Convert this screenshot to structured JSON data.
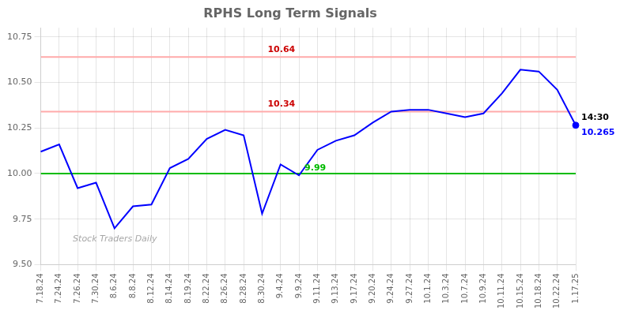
{
  "chart_data": {
    "type": "line",
    "title": "RPHS Long Term Signals",
    "categories": [
      "7.18.24",
      "7.24.24",
      "7.26.24",
      "7.30.24",
      "8.6.24",
      "8.8.24",
      "8.12.24",
      "8.14.24",
      "8.19.24",
      "8.22.24",
      "8.26.24",
      "8.28.24",
      "8.30.24",
      "9.4.24",
      "9.9.24",
      "9.11.24",
      "9.13.24",
      "9.17.24",
      "9.20.24",
      "9.24.24",
      "9.27.24",
      "10.1.24",
      "10.3.24",
      "10.7.24",
      "10.9.24",
      "10.11.24",
      "10.15.24",
      "10.18.24",
      "10.22.24",
      "1.17.25"
    ],
    "values": [
      10.12,
      10.16,
      9.92,
      9.95,
      9.7,
      9.82,
      9.83,
      10.03,
      10.08,
      10.19,
      10.24,
      10.21,
      9.78,
      10.05,
      9.99,
      10.13,
      10.18,
      10.21,
      10.28,
      10.34,
      10.35,
      10.35,
      10.33,
      10.31,
      10.33,
      10.44,
      10.57,
      10.56,
      10.46,
      10.265
    ],
    "color": "blue",
    "ylim": [
      9.5,
      10.8
    ],
    "yticks": [
      {
        "value": 9.5,
        "label": "9.50"
      },
      {
        "value": 9.75,
        "label": "9.75"
      },
      {
        "value": 10.0,
        "label": "10.00"
      },
      {
        "value": 10.25,
        "label": "10.25"
      },
      {
        "value": 10.5,
        "label": "10.50"
      },
      {
        "value": 10.75,
        "label": "10.75"
      }
    ],
    "grid": true,
    "hlines": [
      {
        "value": 10.0,
        "color": "#00bb00"
      },
      {
        "value": 10.64,
        "color": "#ffaaaa"
      },
      {
        "value": 10.34,
        "color": "#ffaaaa"
      }
    ],
    "markers": [
      {
        "x": "1.17.25",
        "y": 10.265,
        "color": "blue",
        "marker": "circle"
      }
    ],
    "annotations": [
      {
        "text": "10.64",
        "x": "8.30.24",
        "y": 10.64,
        "color": "#cc0000",
        "anchor": "above"
      },
      {
        "text": "10.34",
        "x": "8.30.24",
        "y": 10.34,
        "color": "#cc0000",
        "anchor": "above"
      },
      {
        "text": "9.99",
        "x": "9.9.24",
        "y": 9.99,
        "color": "#00bb00",
        "anchor": "above"
      },
      {
        "text": "14:30",
        "x": "1.17.25",
        "y": 10.265,
        "color": "black",
        "anchor": "above"
      },
      {
        "text": "10.265",
        "x": "1.17.25",
        "y": 10.265,
        "color": "blue",
        "anchor": "below"
      }
    ],
    "watermark": "Stock Traders Daily"
  }
}
